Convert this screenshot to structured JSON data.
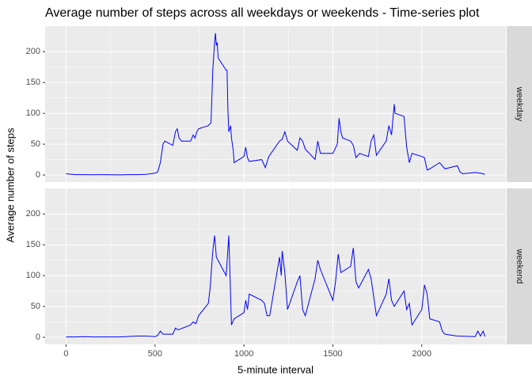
{
  "chart_data": {
    "type": "line",
    "title": "Average number of steps across all weekdays or weekends - Time-series plot",
    "x_label": "5-minute interval",
    "y_label": "Average number of steps",
    "xlim": [
      -117.75,
      2472.75
    ],
    "xticks": [
      0,
      500,
      1000,
      1500,
      2000
    ],
    "ylim": [
      -11.5,
      241.5
    ],
    "yticks": [
      0,
      50,
      100,
      150,
      200
    ],
    "grid": true,
    "panels": [
      {
        "label": "weekday",
        "color": "#0000ff",
        "x": [
          0,
          50,
          100,
          150,
          200,
          250,
          300,
          350,
          400,
          450,
          500,
          515,
          530,
          545,
          555,
          600,
          615,
          625,
          635,
          650,
          700,
          715,
          725,
          735,
          745,
          800,
          815,
          825,
          835,
          840,
          845,
          850,
          855,
          900,
          905,
          910,
          915,
          925,
          930,
          940,
          945,
          1000,
          1010,
          1020,
          1030,
          1100,
          1120,
          1140,
          1200,
          1215,
          1230,
          1245,
          1300,
          1315,
          1330,
          1345,
          1400,
          1415,
          1430,
          1500,
          1525,
          1535,
          1545,
          1555,
          1600,
          1615,
          1630,
          1650,
          1700,
          1715,
          1730,
          1745,
          1800,
          1815,
          1830,
          1845,
          1850,
          1900,
          1915,
          1930,
          1945,
          2000,
          2015,
          2030,
          2045,
          2100,
          2130,
          2200,
          2215,
          2230,
          2300,
          2330,
          2355
        ],
        "values": [
          2,
          0.5,
          0.5,
          0.3,
          0.5,
          0.3,
          0.2,
          0.5,
          0.5,
          1,
          3,
          5,
          20,
          50,
          55,
          48,
          70,
          75,
          60,
          55,
          55,
          65,
          60,
          70,
          75,
          80,
          85,
          170,
          215,
          230,
          210,
          215,
          190,
          170,
          170,
          105,
          70,
          80,
          60,
          40,
          20,
          30,
          45,
          28,
          22,
          25,
          12,
          30,
          55,
          58,
          70,
          55,
          40,
          60,
          55,
          42,
          25,
          55,
          35,
          35,
          50,
          92,
          70,
          60,
          55,
          48,
          28,
          35,
          30,
          55,
          65,
          32,
          55,
          80,
          65,
          115,
          100,
          95,
          45,
          20,
          35,
          30,
          28,
          8,
          10,
          20,
          10,
          15,
          5,
          2,
          4,
          3,
          1
        ]
      },
      {
        "label": "weekend",
        "color": "#0000ff",
        "x": [
          0,
          50,
          100,
          150,
          200,
          300,
          400,
          450,
          500,
          515,
          530,
          545,
          600,
          615,
          630,
          700,
          715,
          730,
          745,
          800,
          810,
          825,
          835,
          845,
          900,
          915,
          930,
          945,
          1000,
          1010,
          1020,
          1030,
          1100,
          1115,
          1130,
          1145,
          1200,
          1210,
          1215,
          1230,
          1245,
          1300,
          1315,
          1330,
          1345,
          1400,
          1415,
          1430,
          1500,
          1515,
          1530,
          1545,
          1600,
          1615,
          1630,
          1645,
          1700,
          1715,
          1730,
          1745,
          1800,
          1815,
          1830,
          1845,
          1900,
          1915,
          1930,
          1945,
          2000,
          2015,
          2030,
          2045,
          2100,
          2115,
          2130,
          2200,
          2300,
          2315,
          2330,
          2345,
          2355
        ],
        "values": [
          0.5,
          0.5,
          1,
          0.5,
          0.5,
          0.5,
          2,
          2,
          1,
          3,
          10,
          5,
          5,
          15,
          12,
          20,
          25,
          22,
          35,
          55,
          80,
          140,
          165,
          130,
          100,
          165,
          20,
          30,
          40,
          60,
          45,
          70,
          60,
          55,
          35,
          35,
          130,
          100,
          140,
          105,
          45,
          90,
          100,
          45,
          35,
          95,
          125,
          110,
          60,
          90,
          135,
          105,
          115,
          145,
          90,
          80,
          110,
          95,
          65,
          35,
          70,
          95,
          60,
          50,
          75,
          45,
          55,
          20,
          45,
          85,
          70,
          30,
          25,
          10,
          5,
          2,
          1,
          10,
          2,
          10,
          1
        ]
      }
    ]
  }
}
